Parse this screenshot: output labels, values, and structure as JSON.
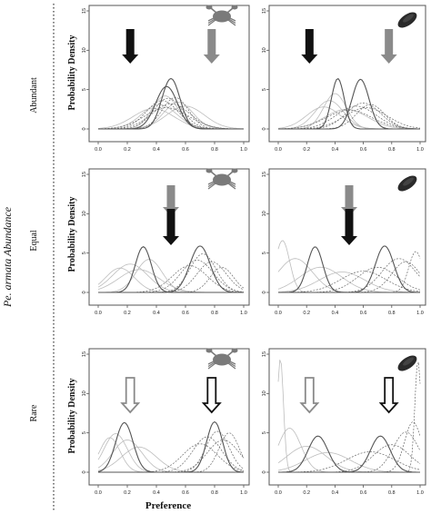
{
  "side_label": "Pe. armata Abundance",
  "row_labels": [
    "Abundant",
    "Equal",
    "Rare"
  ],
  "y_axis_label": "Probability Density",
  "x_axis_label": "Preference",
  "colors": {
    "black_arrow": "#111111",
    "gray_arrow": "#8a8a8a",
    "mean_curve": "#555555",
    "light_curve": "#bdbdbd",
    "dashed_curve": "#6a6a6a",
    "crab_icon": "#7a7a7a",
    "mussel_icon": "#2a2a2a"
  },
  "chart_data": [
    {
      "type": "line",
      "row": "Abundant",
      "icon": "crab-icon",
      "x_ticks": [
        "0.0",
        "0.2",
        "0.4",
        "0.6",
        "0.8",
        "1.0"
      ],
      "y_ticks": [
        "0",
        "5",
        "10",
        "15"
      ],
      "xlim": [
        0,
        1
      ],
      "ylim": [
        0,
        15
      ],
      "arrows": [
        {
          "x": 0.22,
          "color": "black",
          "style": "filled"
        },
        {
          "x": 0.78,
          "color": "gray",
          "style": "filled"
        }
      ],
      "solid_curves": [
        {
          "mean": 0.5,
          "sd": 0.062,
          "peak": 6.4
        },
        {
          "mean": 0.47,
          "sd": 0.075,
          "peak": 5.4
        }
      ],
      "light_curves": [
        {
          "mean": 0.46,
          "sd": 0.09,
          "peak": 4.2
        },
        {
          "mean": 0.42,
          "sd": 0.12,
          "peak": 3.1
        },
        {
          "mean": 0.55,
          "sd": 0.1,
          "peak": 3.4
        },
        {
          "mean": 0.38,
          "sd": 0.14,
          "peak": 2.6
        },
        {
          "mean": 0.6,
          "sd": 0.13,
          "peak": 2.9
        }
      ],
      "dashed_curves": [
        {
          "mean": 0.48,
          "sd": 0.1,
          "peak": 3.9
        },
        {
          "mean": 0.5,
          "sd": 0.13,
          "peak": 3.2
        },
        {
          "mean": 0.44,
          "sd": 0.11,
          "peak": 3.6
        },
        {
          "mean": 0.53,
          "sd": 0.09,
          "peak": 4.0
        },
        {
          "mean": 0.47,
          "sd": 0.15,
          "peak": 2.7
        }
      ]
    },
    {
      "type": "line",
      "row": "Abundant",
      "icon": "mussel-icon",
      "x_ticks": [
        "0.0",
        "0.2",
        "0.4",
        "0.6",
        "0.8",
        "1.0"
      ],
      "y_ticks": [
        "0",
        "5",
        "10",
        "15"
      ],
      "xlim": [
        0,
        1
      ],
      "ylim": [
        0,
        15
      ],
      "arrows": [
        {
          "x": 0.22,
          "color": "black",
          "style": "filled"
        },
        {
          "x": 0.78,
          "color": "gray",
          "style": "filled"
        }
      ],
      "solid_curves": [
        {
          "mean": 0.58,
          "sd": 0.06,
          "peak": 6.3
        },
        {
          "mean": 0.42,
          "sd": 0.045,
          "peak": 6.4
        }
      ],
      "light_curves": [
        {
          "mean": 0.4,
          "sd": 0.08,
          "peak": 4.5
        },
        {
          "mean": 0.32,
          "sd": 0.12,
          "peak": 2.8
        },
        {
          "mean": 0.48,
          "sd": 0.15,
          "peak": 2.5
        },
        {
          "mean": 0.36,
          "sd": 0.1,
          "peak": 3.6
        }
      ],
      "dashed_curves": [
        {
          "mean": 0.6,
          "sd": 0.12,
          "peak": 3.3
        },
        {
          "mean": 0.55,
          "sd": 0.14,
          "peak": 2.9
        },
        {
          "mean": 0.65,
          "sd": 0.1,
          "peak": 3.1
        },
        {
          "mean": 0.5,
          "sd": 0.16,
          "peak": 2.4
        },
        {
          "mean": 0.62,
          "sd": 0.15,
          "peak": 2.7
        }
      ]
    },
    {
      "type": "line",
      "row": "Equal",
      "icon": "crab-icon",
      "x_ticks": [
        "0.0",
        "0.2",
        "0.4",
        "0.6",
        "0.8",
        "1.0"
      ],
      "y_ticks": [
        "0",
        "5",
        "10",
        "15"
      ],
      "xlim": [
        0,
        1
      ],
      "ylim": [
        0,
        15
      ],
      "arrows": [
        {
          "x": 0.5,
          "color": "gray",
          "style": "filled"
        },
        {
          "x": 0.5,
          "color": "black",
          "style": "filled"
        }
      ],
      "solid_curves": [
        {
          "mean": 0.7,
          "sd": 0.07,
          "peak": 5.9
        },
        {
          "mean": 0.31,
          "sd": 0.055,
          "peak": 5.8
        }
      ],
      "light_curves": [
        {
          "mean": 0.22,
          "sd": 0.12,
          "peak": 3.6
        },
        {
          "mean": 0.15,
          "sd": 0.1,
          "peak": 3.1
        },
        {
          "mean": 0.35,
          "sd": 0.09,
          "peak": 4.2
        },
        {
          "mean": 0.28,
          "sd": 0.14,
          "peak": 2.9
        }
      ],
      "dashed_curves": [
        {
          "mean": 0.72,
          "sd": 0.09,
          "peak": 4.9
        },
        {
          "mean": 0.68,
          "sd": 0.11,
          "peak": 4.1
        },
        {
          "mean": 0.78,
          "sd": 0.1,
          "peak": 3.9
        },
        {
          "mean": 0.63,
          "sd": 0.12,
          "peak": 3.4
        },
        {
          "mean": 0.85,
          "sd": 0.08,
          "peak": 3.2
        }
      ]
    },
    {
      "type": "line",
      "row": "Equal",
      "icon": "mussel-icon",
      "x_ticks": [
        "0.0",
        "0.2",
        "0.4",
        "0.6",
        "0.8",
        "1.0"
      ],
      "y_ticks": [
        "0",
        "5",
        "10",
        "15"
      ],
      "xlim": [
        0,
        1
      ],
      "ylim": [
        0,
        15
      ],
      "arrows": [
        {
          "x": 0.5,
          "color": "gray",
          "style": "filled"
        },
        {
          "x": 0.5,
          "color": "black",
          "style": "filled"
        }
      ],
      "solid_curves": [
        {
          "mean": 0.75,
          "sd": 0.065,
          "peak": 5.9
        },
        {
          "mean": 0.26,
          "sd": 0.055,
          "peak": 5.8
        }
      ],
      "light_curves": [
        {
          "mean": 0.03,
          "sd": 0.05,
          "peak": 6.6
        },
        {
          "mean": 0.12,
          "sd": 0.12,
          "peak": 4.3
        },
        {
          "mean": 0.3,
          "sd": 0.15,
          "peak": 3.2
        },
        {
          "mean": 0.45,
          "sd": 0.16,
          "peak": 2.6
        }
      ],
      "dashed_curves": [
        {
          "mean": 0.85,
          "sd": 0.12,
          "peak": 4.3
        },
        {
          "mean": 0.97,
          "sd": 0.05,
          "peak": 5.2
        },
        {
          "mean": 0.7,
          "sd": 0.14,
          "peak": 3.2
        },
        {
          "mean": 0.6,
          "sd": 0.16,
          "peak": 2.7
        },
        {
          "mean": 0.9,
          "sd": 0.1,
          "peak": 3.9
        }
      ]
    },
    {
      "type": "line",
      "row": "Rare",
      "icon": "crab-icon",
      "x_ticks": [
        "0.0",
        "0.2",
        "0.4",
        "0.6",
        "0.8",
        "1.0"
      ],
      "y_ticks": [
        "0",
        "5",
        "10",
        "15"
      ],
      "xlim": [
        0,
        1
      ],
      "ylim": [
        0,
        15
      ],
      "arrows": [
        {
          "x": 0.22,
          "color": "gray",
          "style": "hollow"
        },
        {
          "x": 0.78,
          "color": "black",
          "style": "hollow"
        }
      ],
      "solid_curves": [
        {
          "mean": 0.8,
          "sd": 0.055,
          "peak": 6.4
        },
        {
          "mean": 0.18,
          "sd": 0.06,
          "peak": 6.3
        }
      ],
      "light_curves": [
        {
          "mean": 0.12,
          "sd": 0.08,
          "peak": 4.9
        },
        {
          "mean": 0.2,
          "sd": 0.1,
          "peak": 4.1
        },
        {
          "mean": 0.08,
          "sd": 0.07,
          "peak": 4.4
        },
        {
          "mean": 0.28,
          "sd": 0.12,
          "peak": 3.2
        }
      ],
      "dashed_curves": [
        {
          "mean": 0.82,
          "sd": 0.08,
          "peak": 5.2
        },
        {
          "mean": 0.75,
          "sd": 0.1,
          "peak": 4.5
        },
        {
          "mean": 0.9,
          "sd": 0.07,
          "peak": 5.0
        },
        {
          "mean": 0.7,
          "sd": 0.12,
          "peak": 3.6
        },
        {
          "mean": 0.86,
          "sd": 0.11,
          "peak": 4.1
        }
      ]
    },
    {
      "type": "line",
      "row": "Rare",
      "icon": "mussel-icon",
      "x_ticks": [
        "0.0",
        "0.2",
        "0.4",
        "0.6",
        "0.8",
        "1.0"
      ],
      "y_ticks": [
        "0",
        "5",
        "10",
        "15"
      ],
      "xlim": [
        0,
        1
      ],
      "ylim": [
        0,
        15
      ],
      "arrows": [
        {
          "x": 0.22,
          "color": "gray",
          "style": "hollow"
        },
        {
          "x": 0.78,
          "color": "black",
          "style": "hollow"
        }
      ],
      "solid_curves": [
        {
          "mean": 0.72,
          "sd": 0.07,
          "peak": 4.6
        },
        {
          "mean": 0.28,
          "sd": 0.07,
          "peak": 4.6
        }
      ],
      "light_curves": [
        {
          "mean": 0.015,
          "sd": 0.022,
          "peak": 14.5
        },
        {
          "mean": 0.08,
          "sd": 0.08,
          "peak": 5.6
        },
        {
          "mean": 0.2,
          "sd": 0.14,
          "peak": 3.3
        },
        {
          "mean": 0.35,
          "sd": 0.16,
          "peak": 2.5
        }
      ],
      "dashed_curves": [
        {
          "mean": 0.985,
          "sd": 0.022,
          "peak": 14.2
        },
        {
          "mean": 0.9,
          "sd": 0.09,
          "peak": 5.1
        },
        {
          "mean": 0.8,
          "sd": 0.13,
          "peak": 3.5
        },
        {
          "mean": 0.65,
          "sd": 0.17,
          "peak": 2.6
        },
        {
          "mean": 0.95,
          "sd": 0.06,
          "peak": 6.4
        }
      ]
    }
  ]
}
